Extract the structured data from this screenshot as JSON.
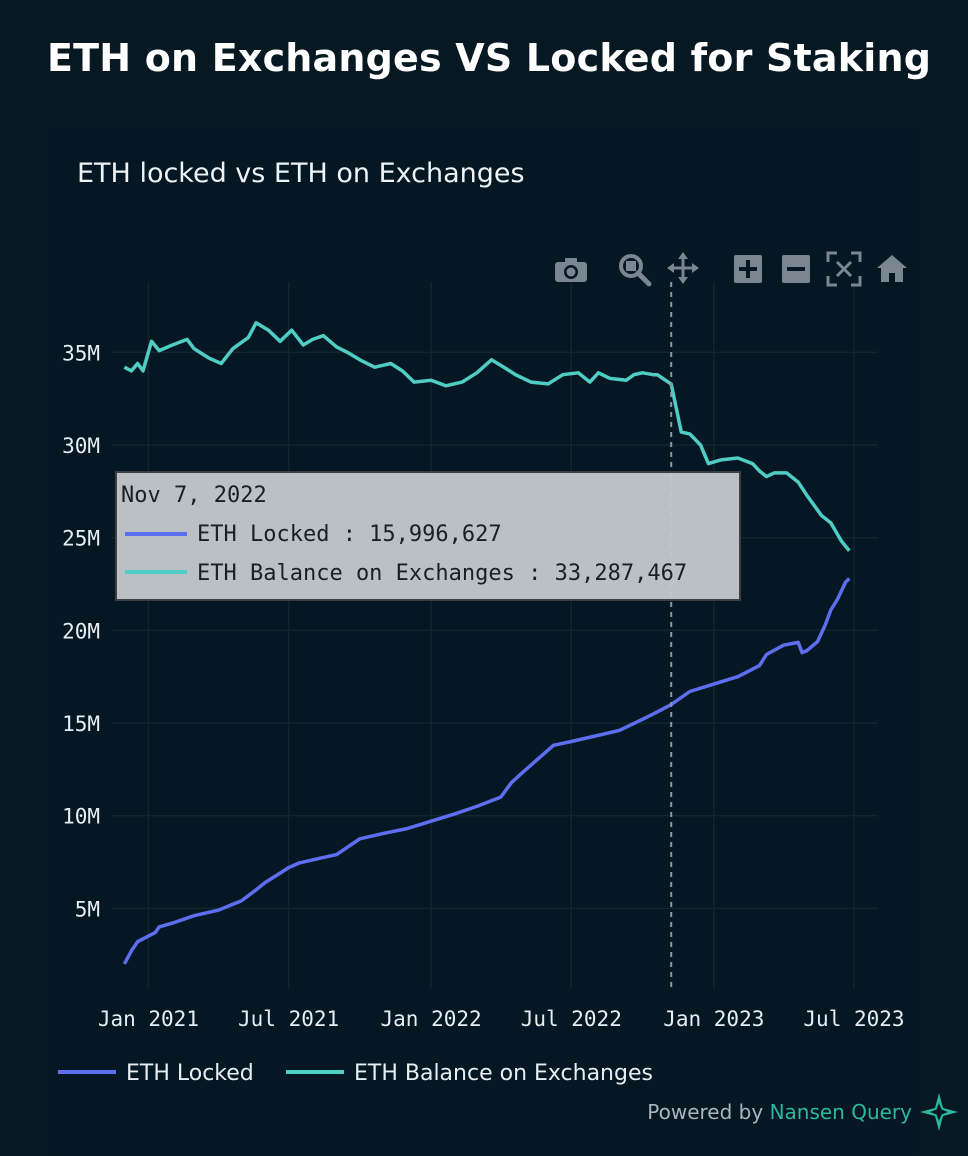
{
  "page": {
    "title": "ETH on Exchanges VS Locked for Staking"
  },
  "card": {
    "title": "ETH locked vs ETH on Exchanges"
  },
  "toolbar": {
    "icons": [
      "camera-icon",
      "zoom-icon",
      "pan-icon",
      "zoom-in-icon",
      "zoom-out-icon",
      "autoscale-icon",
      "reset-axes-icon"
    ]
  },
  "footer": {
    "powered_prefix": "Powered by ",
    "powered_brand": "Nansen Query"
  },
  "tooltip": {
    "date": "Nov 7, 2022",
    "rows": [
      {
        "label": "ETH Locked : 15,996,627",
        "color": "#5d6ff0"
      },
      {
        "label": "ETH Balance on Exchanges : 33,287,467",
        "color": "#4fcdc4"
      }
    ]
  },
  "chart_data": {
    "type": "line",
    "title": "ETH locked vs ETH on Exchanges",
    "xlabel": "",
    "ylabel": "",
    "y_ticks": [
      {
        "value": 5000000,
        "label": "5M"
      },
      {
        "value": 10000000,
        "label": "10M"
      },
      {
        "value": 15000000,
        "label": "15M"
      },
      {
        "value": 20000000,
        "label": "20M"
      },
      {
        "value": 25000000,
        "label": "25M"
      },
      {
        "value": 30000000,
        "label": "30M"
      },
      {
        "value": 35000000,
        "label": "35M"
      }
    ],
    "x_ticks": [
      {
        "date": "2021-01-01",
        "label": "Jan 2021"
      },
      {
        "date": "2021-07-01",
        "label": "Jul 2021"
      },
      {
        "date": "2022-01-01",
        "label": "Jan 2022"
      },
      {
        "date": "2022-07-01",
        "label": "Jul 2022"
      },
      {
        "date": "2023-01-01",
        "label": "Jan 2023"
      },
      {
        "date": "2023-07-01",
        "label": "Jul 2023"
      }
    ],
    "xlim": [
      "2020-11-15",
      "2023-08-01"
    ],
    "ylim": [
      700000,
      38800000
    ],
    "grid": true,
    "legend": "bottom",
    "hover_date": "2022-11-07",
    "series": [
      {
        "name": "ETH Locked",
        "color": "#5d6ff0",
        "points": [
          [
            "2020-12-01",
            2000000
          ],
          [
            "2020-12-10",
            2700000
          ],
          [
            "2020-12-18",
            3200000
          ],
          [
            "2021-01-01",
            3500000
          ],
          [
            "2021-01-10",
            3700000
          ],
          [
            "2021-01-15",
            4000000
          ],
          [
            "2021-02-01",
            4200000
          ],
          [
            "2021-03-01",
            4600000
          ],
          [
            "2021-04-01",
            4900000
          ],
          [
            "2021-05-01",
            5400000
          ],
          [
            "2021-05-20",
            6000000
          ],
          [
            "2021-06-01",
            6400000
          ],
          [
            "2021-06-20",
            6900000
          ],
          [
            "2021-07-01",
            7200000
          ],
          [
            "2021-07-15",
            7450000
          ],
          [
            "2021-08-10",
            7700000
          ],
          [
            "2021-09-01",
            7900000
          ],
          [
            "2021-09-15",
            8300000
          ],
          [
            "2021-10-01",
            8750000
          ],
          [
            "2021-11-01",
            9050000
          ],
          [
            "2021-12-01",
            9300000
          ],
          [
            "2022-01-01",
            9700000
          ],
          [
            "2022-02-01",
            10100000
          ],
          [
            "2022-03-01",
            10500000
          ],
          [
            "2022-04-01",
            11000000
          ],
          [
            "2022-04-15",
            11800000
          ],
          [
            "2022-05-01",
            12400000
          ],
          [
            "2022-05-20",
            13100000
          ],
          [
            "2022-06-08",
            13800000
          ],
          [
            "2022-07-01",
            14000000
          ],
          [
            "2022-08-01",
            14300000
          ],
          [
            "2022-09-01",
            14600000
          ],
          [
            "2022-10-01",
            15200000
          ],
          [
            "2022-10-20",
            15600000
          ],
          [
            "2022-11-07",
            15996627
          ],
          [
            "2022-12-01",
            16700000
          ],
          [
            "2023-01-01",
            17100000
          ],
          [
            "2023-02-01",
            17500000
          ],
          [
            "2023-03-01",
            18100000
          ],
          [
            "2023-03-10",
            18700000
          ],
          [
            "2023-04-01",
            19200000
          ],
          [
            "2023-04-20",
            19350000
          ],
          [
            "2023-04-25",
            18800000
          ],
          [
            "2023-05-01",
            18900000
          ],
          [
            "2023-05-15",
            19400000
          ],
          [
            "2023-05-25",
            20300000
          ],
          [
            "2023-06-01",
            21100000
          ],
          [
            "2023-06-10",
            21700000
          ],
          [
            "2023-06-20",
            22600000
          ],
          [
            "2023-06-25",
            22800000
          ]
        ]
      },
      {
        "name": "ETH Balance on Exchanges",
        "color": "#4fcdc4",
        "points": [
          [
            "2020-12-01",
            34200000
          ],
          [
            "2020-12-10",
            34000000
          ],
          [
            "2020-12-18",
            34400000
          ],
          [
            "2020-12-25",
            34000000
          ],
          [
            "2021-01-05",
            35600000
          ],
          [
            "2021-01-15",
            35100000
          ],
          [
            "2021-02-01",
            35400000
          ],
          [
            "2021-02-20",
            35700000
          ],
          [
            "2021-03-01",
            35200000
          ],
          [
            "2021-03-20",
            34700000
          ],
          [
            "2021-04-05",
            34400000
          ],
          [
            "2021-04-20",
            35200000
          ],
          [
            "2021-05-10",
            35800000
          ],
          [
            "2021-05-20",
            36600000
          ],
          [
            "2021-06-05",
            36200000
          ],
          [
            "2021-06-20",
            35600000
          ],
          [
            "2021-07-05",
            36200000
          ],
          [
            "2021-07-20",
            35400000
          ],
          [
            "2021-08-01",
            35700000
          ],
          [
            "2021-08-15",
            35900000
          ],
          [
            "2021-09-01",
            35300000
          ],
          [
            "2021-09-15",
            35000000
          ],
          [
            "2021-10-01",
            34600000
          ],
          [
            "2021-10-20",
            34200000
          ],
          [
            "2021-11-10",
            34400000
          ],
          [
            "2021-11-25",
            34000000
          ],
          [
            "2021-12-10",
            33400000
          ],
          [
            "2022-01-01",
            33500000
          ],
          [
            "2022-01-20",
            33200000
          ],
          [
            "2022-02-10",
            33400000
          ],
          [
            "2022-03-01",
            33900000
          ],
          [
            "2022-03-20",
            34600000
          ],
          [
            "2022-04-05",
            34200000
          ],
          [
            "2022-04-20",
            33800000
          ],
          [
            "2022-05-10",
            33400000
          ],
          [
            "2022-06-01",
            33300000
          ],
          [
            "2022-06-20",
            33800000
          ],
          [
            "2022-07-10",
            33900000
          ],
          [
            "2022-07-25",
            33400000
          ],
          [
            "2022-08-05",
            33900000
          ],
          [
            "2022-08-20",
            33600000
          ],
          [
            "2022-09-10",
            33500000
          ],
          [
            "2022-09-20",
            33800000
          ],
          [
            "2022-10-01",
            33900000
          ],
          [
            "2022-10-15",
            33800000
          ],
          [
            "2022-10-20",
            33800000
          ],
          [
            "2022-11-07",
            33287467
          ],
          [
            "2022-11-10",
            32700000
          ],
          [
            "2022-11-20",
            30700000
          ],
          [
            "2022-12-01",
            30600000
          ],
          [
            "2022-12-15",
            30000000
          ],
          [
            "2022-12-25",
            29000000
          ],
          [
            "2023-01-10",
            29200000
          ],
          [
            "2023-02-01",
            29300000
          ],
          [
            "2023-02-20",
            29000000
          ],
          [
            "2023-03-01",
            28600000
          ],
          [
            "2023-03-10",
            28300000
          ],
          [
            "2023-03-20",
            28500000
          ],
          [
            "2023-04-05",
            28500000
          ],
          [
            "2023-04-20",
            28000000
          ],
          [
            "2023-05-01",
            27300000
          ],
          [
            "2023-05-20",
            26200000
          ],
          [
            "2023-06-01",
            25800000
          ],
          [
            "2023-06-15",
            24800000
          ],
          [
            "2023-06-25",
            24300000
          ]
        ]
      }
    ]
  }
}
